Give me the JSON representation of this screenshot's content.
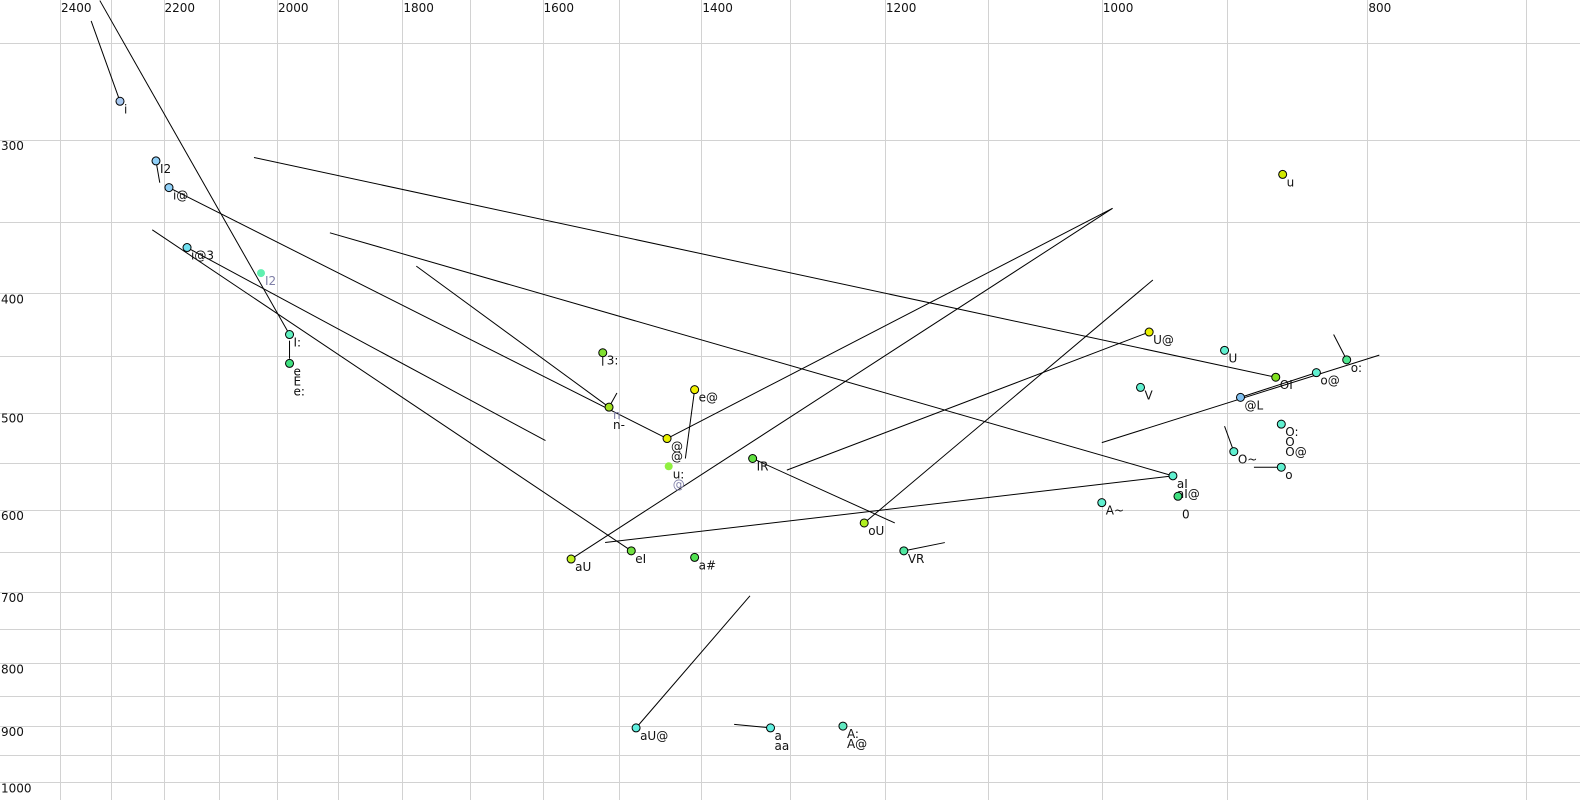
{
  "chart_data": {
    "type": "scatter",
    "title": "",
    "xlabel": "",
    "ylabel": "",
    "x_axis": {
      "scale": "log",
      "reversed": true,
      "position": "top",
      "range": [
        2400,
        700
      ],
      "tick_labels": [
        "2400",
        "2200",
        "2000",
        "1800",
        "1600",
        "1400",
        "1200",
        "1000",
        "800"
      ],
      "grid_step": 100
    },
    "y_axis": {
      "scale": "log",
      "reversed": false,
      "position": "left",
      "range": [
        250,
        1000
      ],
      "tick_labels": [
        "300",
        "400",
        "500",
        "600",
        "700",
        "800",
        "900",
        "1000"
      ],
      "grid_step": 50
    },
    "grid": true,
    "points": [
      {
        "f2": 2282,
        "f1": 279,
        "color": "#a8c8f0",
        "labels": [
          {
            "text": "i"
          }
        ]
      },
      {
        "f2": 2214,
        "f1": 312,
        "color": "#90d0f8",
        "labels": [
          {
            "text": "I2"
          }
        ]
      },
      {
        "f2": 2190,
        "f1": 328,
        "color": "#90d0f8",
        "labels": [
          {
            "text": "i@"
          }
        ]
      },
      {
        "f2": 2157,
        "f1": 367,
        "color": "#70e0f0",
        "labels": [
          {
            "text": "i@3"
          }
        ]
      },
      {
        "f2": 2027,
        "f1": 385,
        "color": "#60f0b0",
        "outline": false,
        "labels": [
          {
            "text": "I2",
            "muted": true
          }
        ]
      },
      {
        "f2": 1979,
        "f1": 432,
        "color": "#60f0c0",
        "labels": [
          {
            "text": "I:"
          }
        ]
      },
      {
        "f2": 1979,
        "f1": 456,
        "color": "#40e080",
        "labels": [
          {
            "text": "e"
          },
          {
            "text": "E"
          },
          {
            "text": "e:"
          }
        ]
      },
      {
        "f2": 1521,
        "f1": 447,
        "color": "#80e030",
        "labels": [
          {
            "text": "3:"
          }
        ]
      },
      {
        "f2": 1513,
        "f1": 495,
        "color": "#a0e020",
        "labels": [
          {
            "text": "n",
            "muted": true
          },
          {
            "text": "n-"
          }
        ]
      },
      {
        "f2": 1441,
        "f1": 525,
        "color": "#e8f000",
        "labels": [
          {
            "text": "@"
          },
          {
            "text": "@"
          }
        ]
      },
      {
        "f2": 1408,
        "f1": 479,
        "color": "#f0f000",
        "labels": [
          {
            "text": "e@"
          }
        ]
      },
      {
        "f2": 1439,
        "f1": 553,
        "color": "#90f040",
        "outline": false,
        "labels": [
          {
            "text": "u:"
          },
          {
            "text": "@",
            "muted": true
          }
        ]
      },
      {
        "f2": 1341,
        "f1": 545,
        "color": "#60e040",
        "labels": [
          {
            "text": "IR"
          }
        ]
      },
      {
        "f2": 1221,
        "f1": 615,
        "color": "#b0f020",
        "labels": [
          {
            "text": "oU"
          }
        ]
      },
      {
        "f2": 1562,
        "f1": 658,
        "color": "#c0f020",
        "labels": [
          {
            "text": "aU"
          }
        ]
      },
      {
        "f2": 1485,
        "f1": 648,
        "color": "#70e040",
        "labels": [
          {
            "text": "eI"
          }
        ]
      },
      {
        "f2": 1408,
        "f1": 656,
        "color": "#50e050",
        "labels": [
          {
            "text": "a#"
          }
        ]
      },
      {
        "f2": 1181,
        "f1": 648,
        "color": "#50e8a0",
        "labels": [
          {
            "text": "VR"
          }
        ]
      },
      {
        "f2": 1479,
        "f1": 903,
        "color": "#60f0e0",
        "labels": [
          {
            "text": "aU@"
          }
        ]
      },
      {
        "f2": 1321,
        "f1": 903,
        "color": "#60f0e0",
        "labels": [
          {
            "text": "a"
          },
          {
            "text": "aa"
          }
        ]
      },
      {
        "f2": 1243,
        "f1": 900,
        "color": "#60e8c0",
        "labels": [
          {
            "text": "A:"
          },
          {
            "text": "A@"
          }
        ]
      },
      {
        "f2": 961,
        "f1": 430,
        "color": "#e8f000",
        "labels": [
          {
            "text": "U@"
          }
        ]
      },
      {
        "f2": 902,
        "f1": 445,
        "color": "#60f0d0",
        "labels": [
          {
            "text": "U"
          }
        ]
      },
      {
        "f2": 968,
        "f1": 477,
        "color": "#60f0d0",
        "labels": [
          {
            "text": "V"
          }
        ]
      },
      {
        "f2": 864,
        "f1": 468,
        "color": "#80e020",
        "labels": [
          {
            "text": "OI"
          }
        ]
      },
      {
        "f2": 835,
        "f1": 464,
        "color": "#60f0d0",
        "labels": [
          {
            "text": "o@"
          }
        ]
      },
      {
        "f2": 814,
        "f1": 453,
        "color": "#50e890",
        "labels": [
          {
            "text": "o:"
          }
        ]
      },
      {
        "f2": 890,
        "f1": 486,
        "color": "#80c0f0",
        "labels": [
          {
            "text": "@L"
          }
        ]
      },
      {
        "f2": 860,
        "f1": 511,
        "color": "#60f0d0",
        "labels": [
          {
            "text": "O:"
          },
          {
            "text": "O"
          },
          {
            "text": "O@"
          }
        ]
      },
      {
        "f2": 895,
        "f1": 538,
        "color": "#60f0d0",
        "labels": [
          {
            "text": "O~"
          }
        ]
      },
      {
        "f2": 860,
        "f1": 554,
        "color": "#60f0d0",
        "labels": [
          {
            "text": "o"
          }
        ]
      },
      {
        "f2": 942,
        "f1": 563,
        "color": "#60f0d0",
        "labels": [
          {
            "text": "aI"
          },
          {
            "text": "aI@"
          }
        ]
      },
      {
        "f2": 938,
        "f1": 585,
        "color": "#40e080",
        "labels": [
          {
            "text": "",
            "skip": true
          },
          {
            "text": "0"
          }
        ]
      },
      {
        "f2": 1000,
        "f1": 592,
        "color": "#60f0d0",
        "labels": [
          {
            "text": "A~"
          }
        ]
      },
      {
        "f2": 859,
        "f1": 320,
        "color": "#d0e800",
        "labels": [
          {
            "text": "u"
          }
        ]
      }
    ],
    "trajectories": [
      {
        "from": [
          2338,
          240
        ],
        "to": [
          2282,
          279
        ]
      },
      {
        "from": [
          2321,
          231
        ],
        "to": [
          1979,
          432
        ]
      },
      {
        "from": [
          2039,
          310
        ],
        "to": [
          864,
          468
        ]
      },
      {
        "from": [
          2190,
          328
        ],
        "to": [
          1441,
          525
        ]
      },
      {
        "from": [
          2157,
          367
        ],
        "to": [
          1596,
          527
        ]
      },
      {
        "from": [
          2221,
          355
        ],
        "to": [
          1485,
          648
        ]
      },
      {
        "from": [
          1913,
          357
        ],
        "to": [
          942,
          563
        ]
      },
      {
        "from": [
          1779,
          380
        ],
        "to": [
          1513,
          495
        ]
      },
      {
        "from": [
          1441,
          525
        ],
        "to": [
          991,
          341
        ]
      },
      {
        "from": [
          1562,
          658
        ],
        "to": [
          991,
          341
        ]
      },
      {
        "from": [
          1221,
          615
        ],
        "to": [
          958,
          390
        ]
      },
      {
        "from": [
          1408,
          479
        ],
        "to": [
          1419,
          545
        ]
      },
      {
        "from": [
          1341,
          545
        ],
        "to": [
          1190,
          615
        ]
      },
      {
        "from": [
          1303,
          557
        ],
        "to": [
          961,
          430
        ]
      },
      {
        "from": [
          1518,
          638
        ],
        "to": [
          942,
          563
        ]
      },
      {
        "from": [
          1181,
          648
        ],
        "to": [
          1141,
          638
        ]
      },
      {
        "from": [
          1479,
          903
        ],
        "to": [
          1344,
          705
        ]
      },
      {
        "from": [
          1321,
          903
        ],
        "to": [
          1362,
          897
        ]
      },
      {
        "from": [
          1000,
          529
        ],
        "to": [
          792,
          449
        ]
      },
      {
        "from": [
          890,
          486
        ],
        "to": [
          835,
          464
        ]
      },
      {
        "from": [
          814,
          453
        ],
        "to": [
          823,
          432
        ]
      },
      {
        "from": [
          895,
          538
        ],
        "to": [
          902,
          513
        ]
      },
      {
        "from": [
          860,
          554
        ],
        "to": [
          880,
          554
        ]
      },
      {
        "from": [
          2214,
          312
        ],
        "to": [
          2207,
          325
        ]
      },
      {
        "from": [
          1521,
          447
        ],
        "to": [
          1521,
          458
        ]
      },
      {
        "from": [
          1979,
          437
        ],
        "to": [
          1979,
          452
        ]
      },
      {
        "from": [
          1513,
          495
        ],
        "to": [
          1503,
          482
        ]
      }
    ]
  }
}
